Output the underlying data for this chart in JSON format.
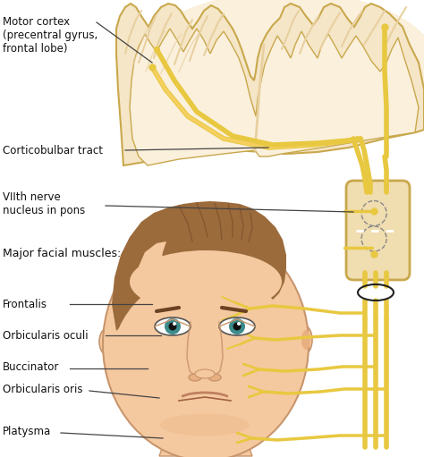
{
  "bg_color": "#ffffff",
  "brain_fill_light": "#faf0dc",
  "brain_fill": "#f5e6c8",
  "brain_fill_dark": "#e8d0a0",
  "brain_stroke": "#c9a84c",
  "nerve_color": "#e8c840",
  "nerve_lw": 4.0,
  "nerve_lw_thin": 2.5,
  "face_skin": "#f5c9a0",
  "face_skin_dark": "#e8b080",
  "face_stroke": "#c8956c",
  "hair_color": "#9B6B3C",
  "hair_dark": "#7a4f28",
  "pons_fill": "#f0ddb0",
  "pons_stroke": "#c9a84c",
  "labels": {
    "motor_cortex": "Motor cortex\n(precentral gyrus,\nfrontal lobe)",
    "corticobulbar": "Corticobulbar tract",
    "viith_nerve": "VIIth nerve\nnucleus in pons",
    "major_facial": "Major facial muscles:",
    "frontalis": "Frontalis",
    "orbicularis_oculi": "Orbicularis oculi",
    "buccinator": "Buccinator",
    "orbicularis_oris": "Orbicularis oris",
    "platysma": "Platysma"
  },
  "fontsize": 8.5
}
